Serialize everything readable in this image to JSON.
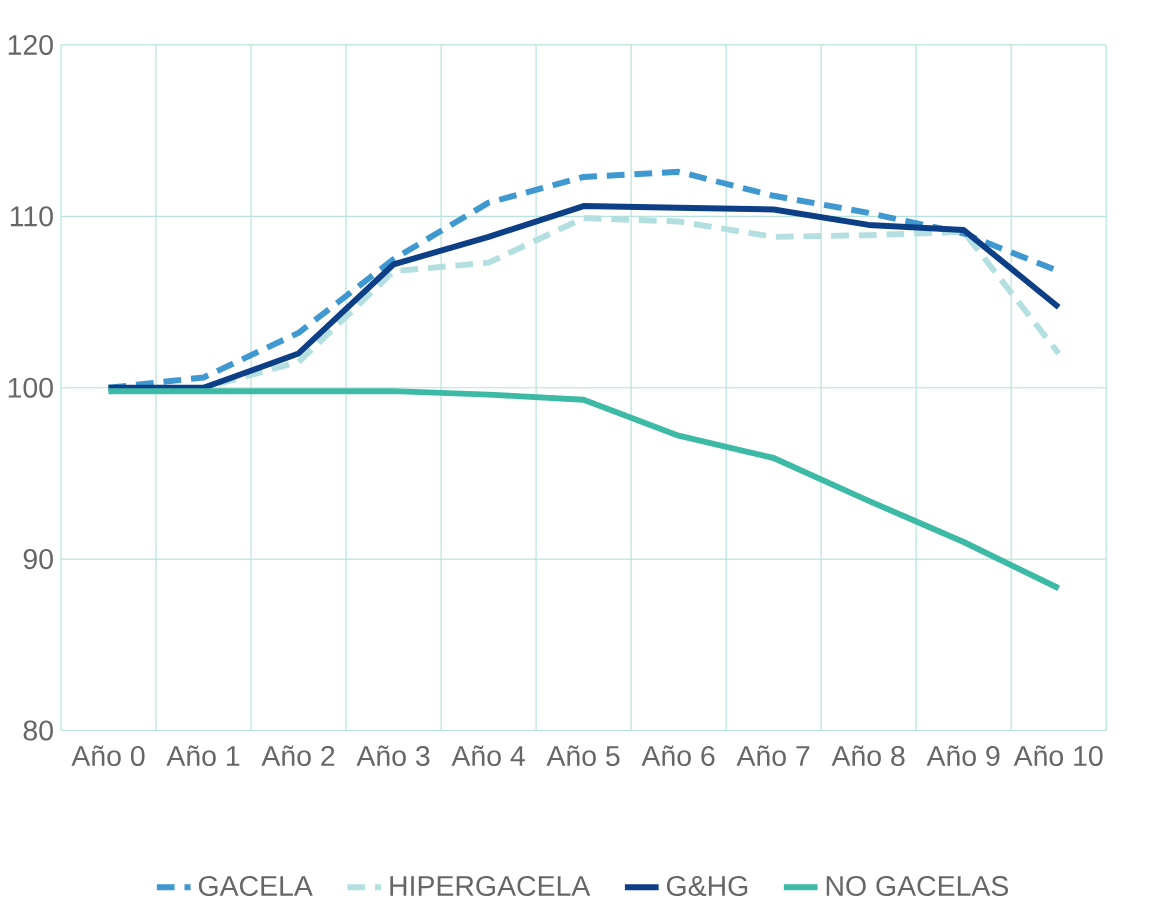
{
  "chart_data": {
    "type": "line",
    "categories": [
      "Año 0",
      "Año 1",
      "Año 2",
      "Año 3",
      "Año 4",
      "Año 5",
      "Año 6",
      "Año 7",
      "Año 8",
      "Año 9",
      "Año 10"
    ],
    "series": [
      {
        "name": "GACELA",
        "color": "#3f98cf",
        "line_style": "dashed",
        "values": [
          100,
          100.6,
          103.2,
          107.5,
          110.8,
          112.3,
          112.6,
          111.2,
          110.2,
          109,
          106.8
        ]
      },
      {
        "name": "HIPERGACELA",
        "color": "#b3dfe0",
        "line_style": "dashed",
        "values": [
          99.8,
          100,
          101.5,
          106.8,
          107.3,
          109.9,
          109.7,
          108.8,
          108.9,
          109.1,
          102
        ]
      },
      {
        "name": "G&HG",
        "color": "#0d3f86",
        "line_style": "solid",
        "values": [
          100,
          100,
          102,
          107.2,
          108.8,
          110.6,
          110.5,
          110.4,
          109.5,
          109.2,
          104.7
        ]
      },
      {
        "name": "NO GACELAS",
        "color": "#3dbaa5",
        "line_style": "solid",
        "values": [
          99.8,
          99.8,
          99.8,
          99.8,
          99.6,
          99.3,
          97.2,
          95.9,
          93.4,
          91,
          88.3
        ]
      }
    ],
    "ylim": [
      80,
      120
    ],
    "yticks": [
      80,
      90,
      100,
      110,
      120
    ],
    "grid": true,
    "legend": "bottom",
    "marker": "none"
  }
}
